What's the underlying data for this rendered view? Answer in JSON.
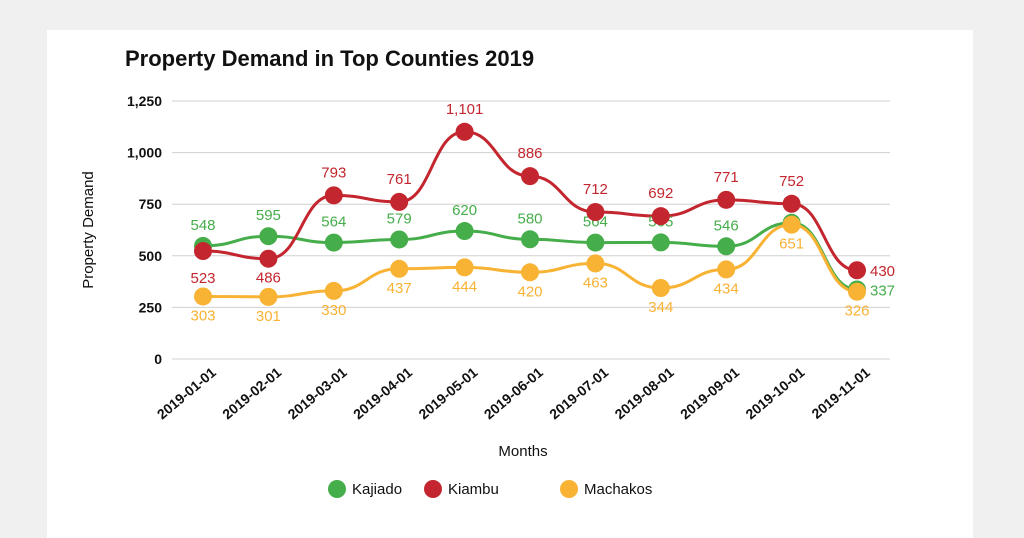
{
  "chart_data": {
    "type": "line",
    "title": "Property Demand in Top Counties 2019",
    "xlabel": "Months",
    "ylabel": "Property Demand",
    "ylim": [
      0,
      1250
    ],
    "yticks": [
      0,
      250,
      500,
      750,
      1000,
      1250
    ],
    "ytick_labels": [
      "0",
      "250",
      "500",
      "750",
      "1,000",
      "1,250"
    ],
    "categories": [
      "2019-01-01",
      "2019-02-01",
      "2019-03-01",
      "2019-04-01",
      "2019-05-01",
      "2019-06-01",
      "2019-07-01",
      "2019-08-01",
      "2019-09-01",
      "2019-10-01",
      "2019-11-01"
    ],
    "grid": true,
    "legend_position": "bottom",
    "series": [
      {
        "name": "Kajiado",
        "color": "#45ad4a",
        "values": [
          548,
          595,
          564,
          579,
          620,
          580,
          564,
          565,
          546,
          660,
          337
        ],
        "labels": [
          "548",
          "595",
          "564",
          "579",
          "620",
          "580",
          "564",
          "565",
          "546",
          "",
          "337"
        ]
      },
      {
        "name": "Kiambu",
        "color": "#c3262e",
        "values": [
          523,
          486,
          793,
          761,
          1101,
          886,
          712,
          692,
          771,
          752,
          430
        ],
        "labels": [
          "523",
          "486",
          "793",
          "761",
          "1,101",
          "886",
          "712",
          "692",
          "771",
          "752",
          "430"
        ]
      },
      {
        "name": "Machakos",
        "color": "#f8b234",
        "values": [
          303,
          301,
          330,
          437,
          444,
          420,
          463,
          344,
          434,
          651,
          326
        ],
        "labels": [
          "303",
          "301",
          "330",
          "437",
          "444",
          "420",
          "463",
          "344",
          "434",
          "651",
          "326"
        ]
      }
    ]
  }
}
